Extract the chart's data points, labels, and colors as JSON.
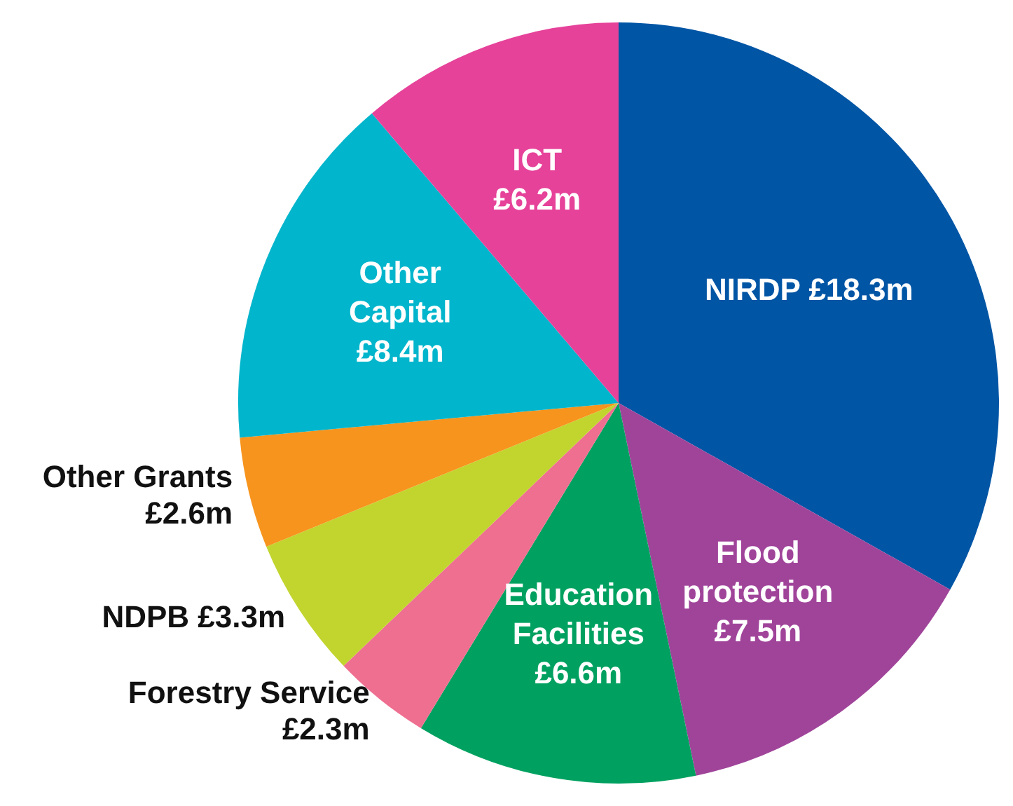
{
  "chart_data": {
    "type": "pie",
    "categories": [
      "NIRDP",
      "Flood protection",
      "Education Facilities",
      "Forestry Service",
      "NDPB",
      "Other Grants",
      "Other Capital",
      "ICT"
    ],
    "values": [
      18.3,
      7.5,
      6.6,
      2.3,
      3.3,
      2.6,
      8.4,
      6.2
    ],
    "value_labels": [
      "£18.3m",
      "£7.5m",
      "£6.6m",
      "£2.3m",
      "£3.3m",
      "£2.6m",
      "£8.4m",
      "£6.2m"
    ],
    "colors": [
      "#0055a5",
      "#a0449a",
      "#00a160",
      "#ef6f91",
      "#c2d52f",
      "#f7941d",
      "#00b5cc",
      "#e6429a"
    ],
    "legend": false
  }
}
